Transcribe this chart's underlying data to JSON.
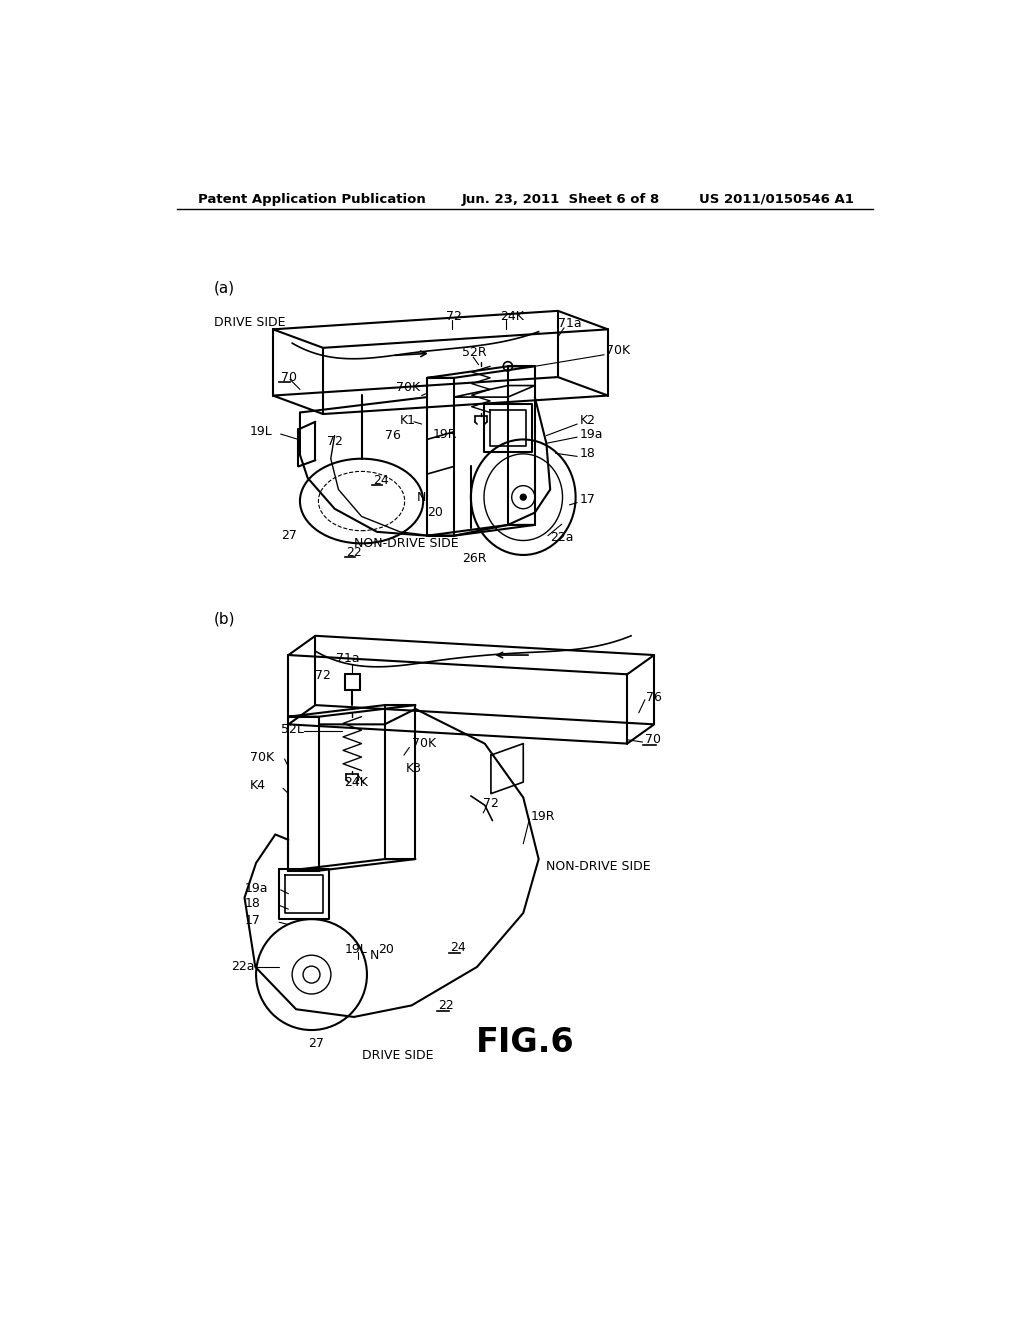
{
  "title": "FIG.6",
  "header_left": "Patent Application Publication",
  "header_center": "Jun. 23, 2011  Sheet 6 of 8",
  "header_right": "US 2011/0150546 A1",
  "background_color": "#ffffff",
  "text_color": "#000000",
  "line_color": "#000000",
  "fig_label_a": "(a)",
  "fig_label_b": "(b)"
}
